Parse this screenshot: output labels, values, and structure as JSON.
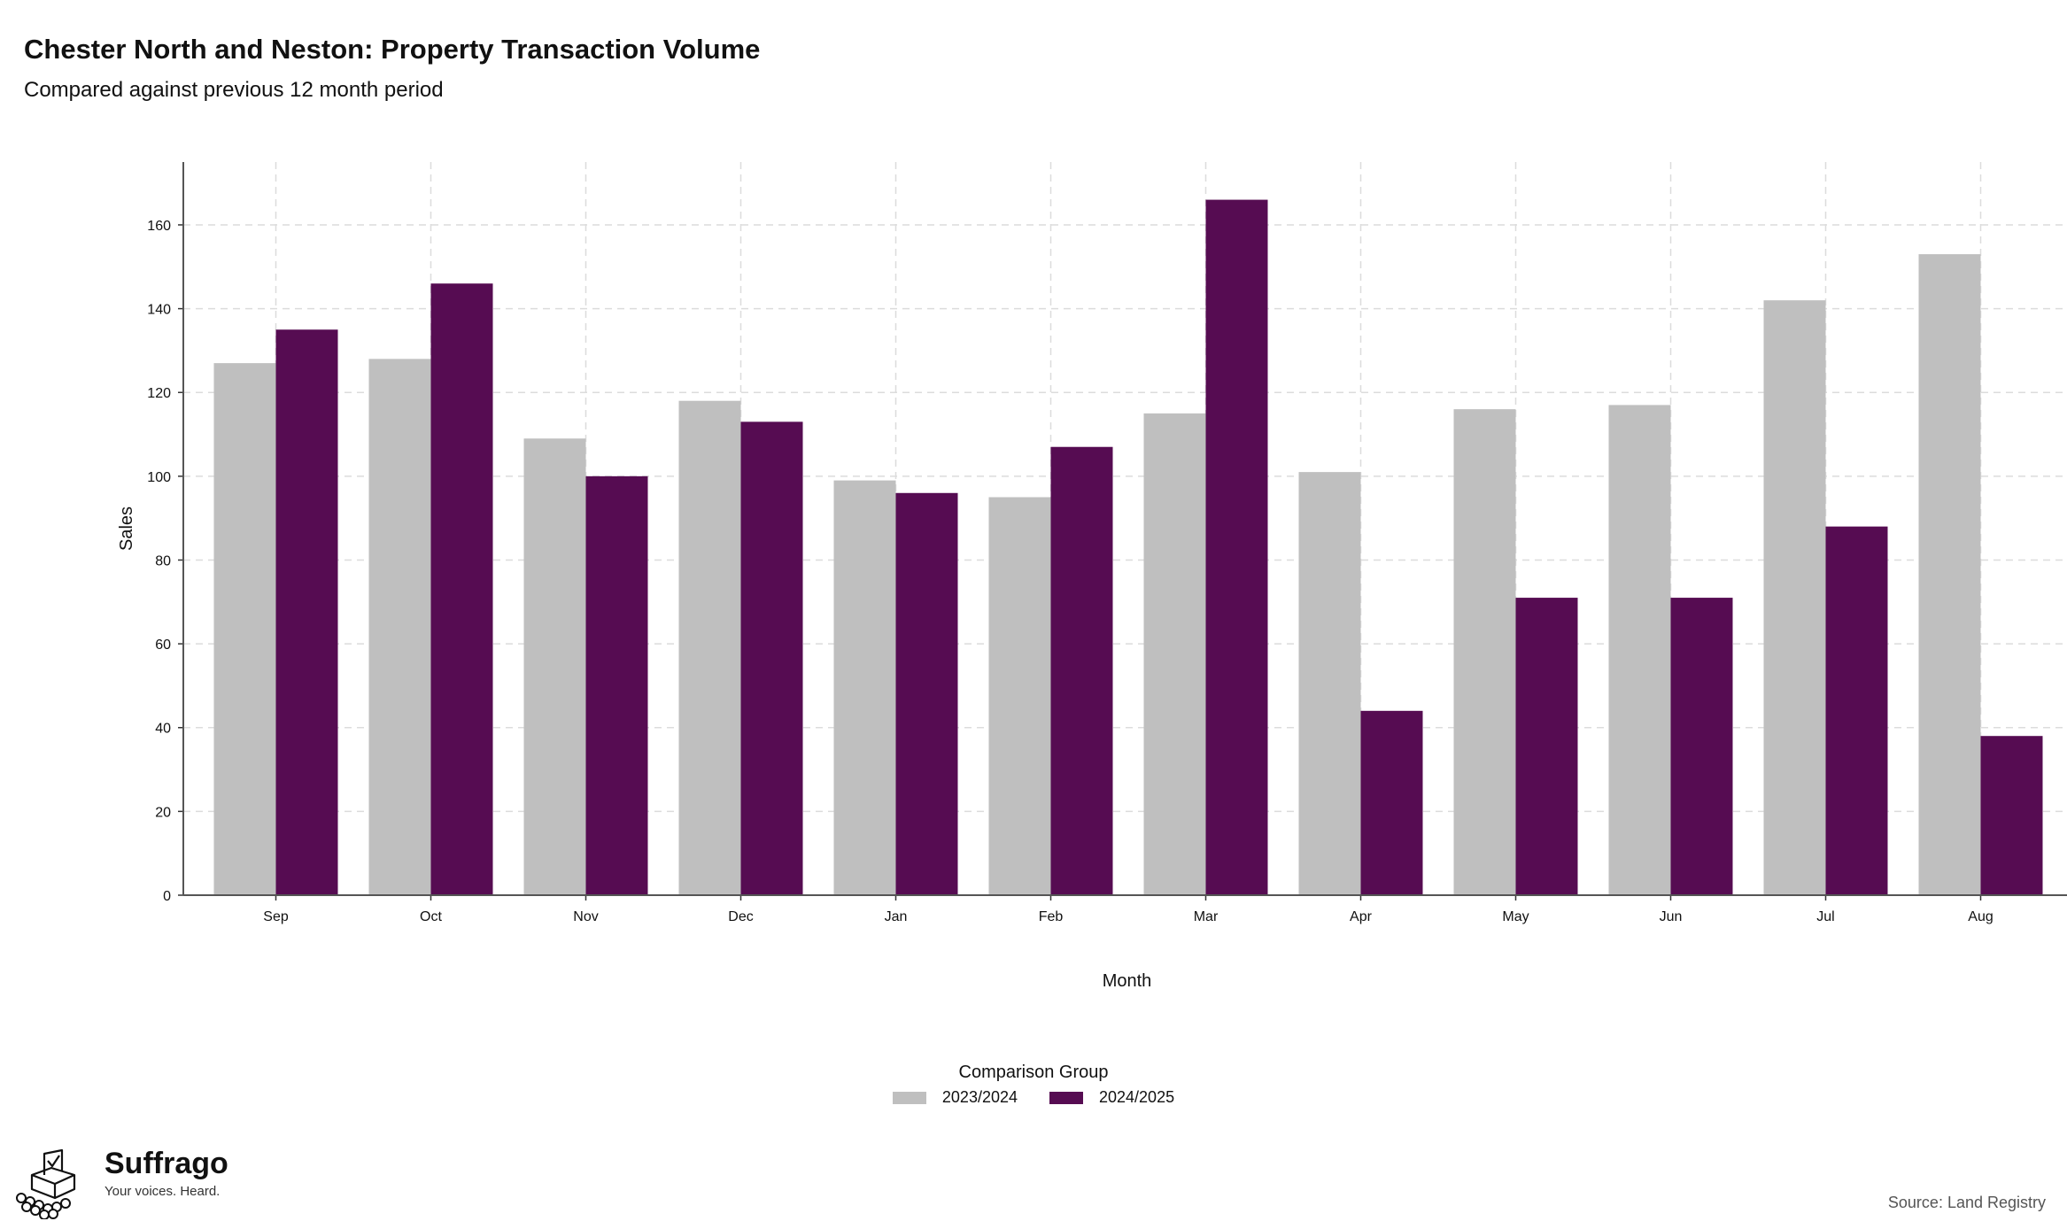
{
  "title": "Chester North and Neston: Property Transaction Volume",
  "subtitle": "Compared against previous 12 month period",
  "chart_data": {
    "type": "bar",
    "title": "Chester North and Neston: Property Transaction Volume",
    "subtitle": "Compared against previous 12 month period",
    "xlabel": "Month",
    "ylabel": "Sales",
    "categories": [
      "Sep",
      "Oct",
      "Nov",
      "Dec",
      "Jan",
      "Feb",
      "Mar",
      "Apr",
      "May",
      "Jun",
      "Jul",
      "Aug"
    ],
    "ylim": [
      0,
      175
    ],
    "yticks": [
      0,
      20,
      40,
      60,
      80,
      100,
      120,
      140,
      160
    ],
    "grid": true,
    "legend_title": "Comparison Group",
    "legend_position": "bottom",
    "series": [
      {
        "name": "2023/2024",
        "color": "#bfbfbf",
        "values": [
          127,
          128,
          109,
          118,
          99,
          95,
          115,
          101,
          116,
          117,
          142,
          153
        ]
      },
      {
        "name": "2024/2025",
        "color": "#560c52",
        "values": [
          135,
          146,
          100,
          113,
          96,
          107,
          166,
          44,
          71,
          71,
          88,
          38
        ]
      }
    ]
  },
  "legend": {
    "title": "Comparison Group",
    "items": [
      {
        "label": "2023/2024",
        "color": "#bfbfbf"
      },
      {
        "label": "2024/2025",
        "color": "#560c52"
      }
    ]
  },
  "brand": {
    "name": "Suffrago",
    "tagline": "Your voices. Heard.",
    "logo_icon": "ballot-box-icon"
  },
  "source": "Source: Land Registry"
}
